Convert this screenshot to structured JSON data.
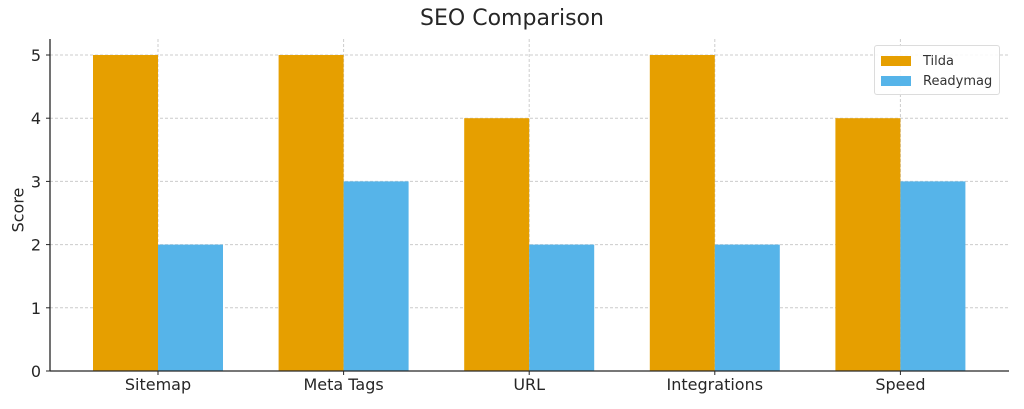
{
  "chart_data": {
    "type": "bar",
    "title": "SEO Comparison",
    "xlabel": "",
    "ylabel": "Score",
    "categories": [
      "Sitemap",
      "Meta Tags",
      "URL",
      "Integrations",
      "Speed"
    ],
    "series": [
      {
        "name": "Tilda",
        "values": [
          5,
          5,
          4,
          5,
          4
        ],
        "color": "#E69F00"
      },
      {
        "name": "Readymag",
        "values": [
          2,
          3,
          2,
          2,
          3
        ],
        "color": "#56B4E9"
      }
    ],
    "ylim": [
      0,
      5.25
    ],
    "yticks": [
      0,
      1,
      2,
      3,
      4,
      5
    ],
    "grid": true,
    "legend_position": "upper right"
  },
  "colors": {
    "tilda": "#E69F00",
    "readymag": "#56B4E9",
    "axis": "#262626",
    "grid": "#cccccc"
  }
}
